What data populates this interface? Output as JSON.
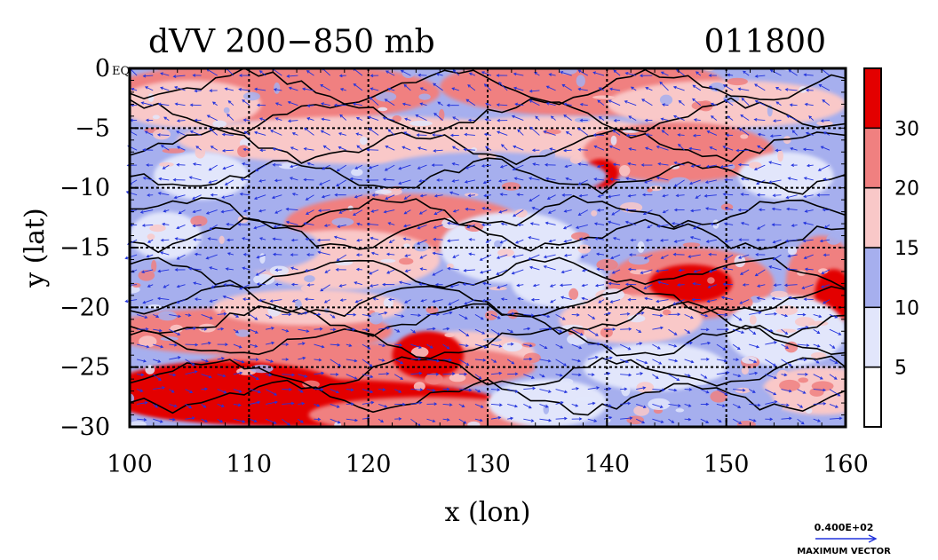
{
  "chart_data": {
    "type": "heatmap",
    "title_left": "dVV 200−850 mb",
    "title_right": "011800",
    "xlabel": "x (lon)",
    "ylabel": "y (lat)",
    "xlim": [
      100,
      160
    ],
    "ylim": [
      -30,
      0
    ],
    "x_ticks": [
      100,
      110,
      120,
      130,
      140,
      150,
      160
    ],
    "x_tick_labels": [
      "100",
      "110",
      "120",
      "130",
      "140",
      "150",
      "160"
    ],
    "y_ticks": [
      0,
      -5,
      -10,
      -15,
      -20,
      -25,
      -30
    ],
    "y_tick_labels": [
      "0",
      "−5",
      "−10",
      "−15",
      "−20",
      "−25",
      "−30"
    ],
    "grid": true,
    "colorbar": {
      "levels": [
        5,
        10,
        15,
        20,
        30
      ],
      "labels": [
        "5",
        "10",
        "15",
        "20",
        "30"
      ],
      "colors": [
        "#ffffff",
        "#e2e6fb",
        "#a6afee",
        "#f9c8c8",
        "#f08080",
        "#e30000"
      ]
    },
    "vector_color": "#2233dd",
    "max_vector": {
      "value": "0.400E+02",
      "label": "MAXIMUM VECTOR"
    },
    "eq_label": "EQ",
    "approx_field_bands": [
      {
        "lat": -2,
        "lon_from": 100,
        "lon_to": 160,
        "level": 20
      },
      {
        "lat": -8,
        "lon_from": 100,
        "lon_to": 160,
        "level": 10
      },
      {
        "lat": -13,
        "lon_from": 116,
        "lon_to": 130,
        "level": 20
      },
      {
        "lat": -18,
        "lon_from": 143,
        "lon_to": 150,
        "level": 30
      },
      {
        "lat": -24,
        "lon_from": 100,
        "lon_to": 135,
        "level": 20
      },
      {
        "lat": -28,
        "lon_from": 100,
        "lon_to": 130,
        "level": 30
      }
    ]
  }
}
